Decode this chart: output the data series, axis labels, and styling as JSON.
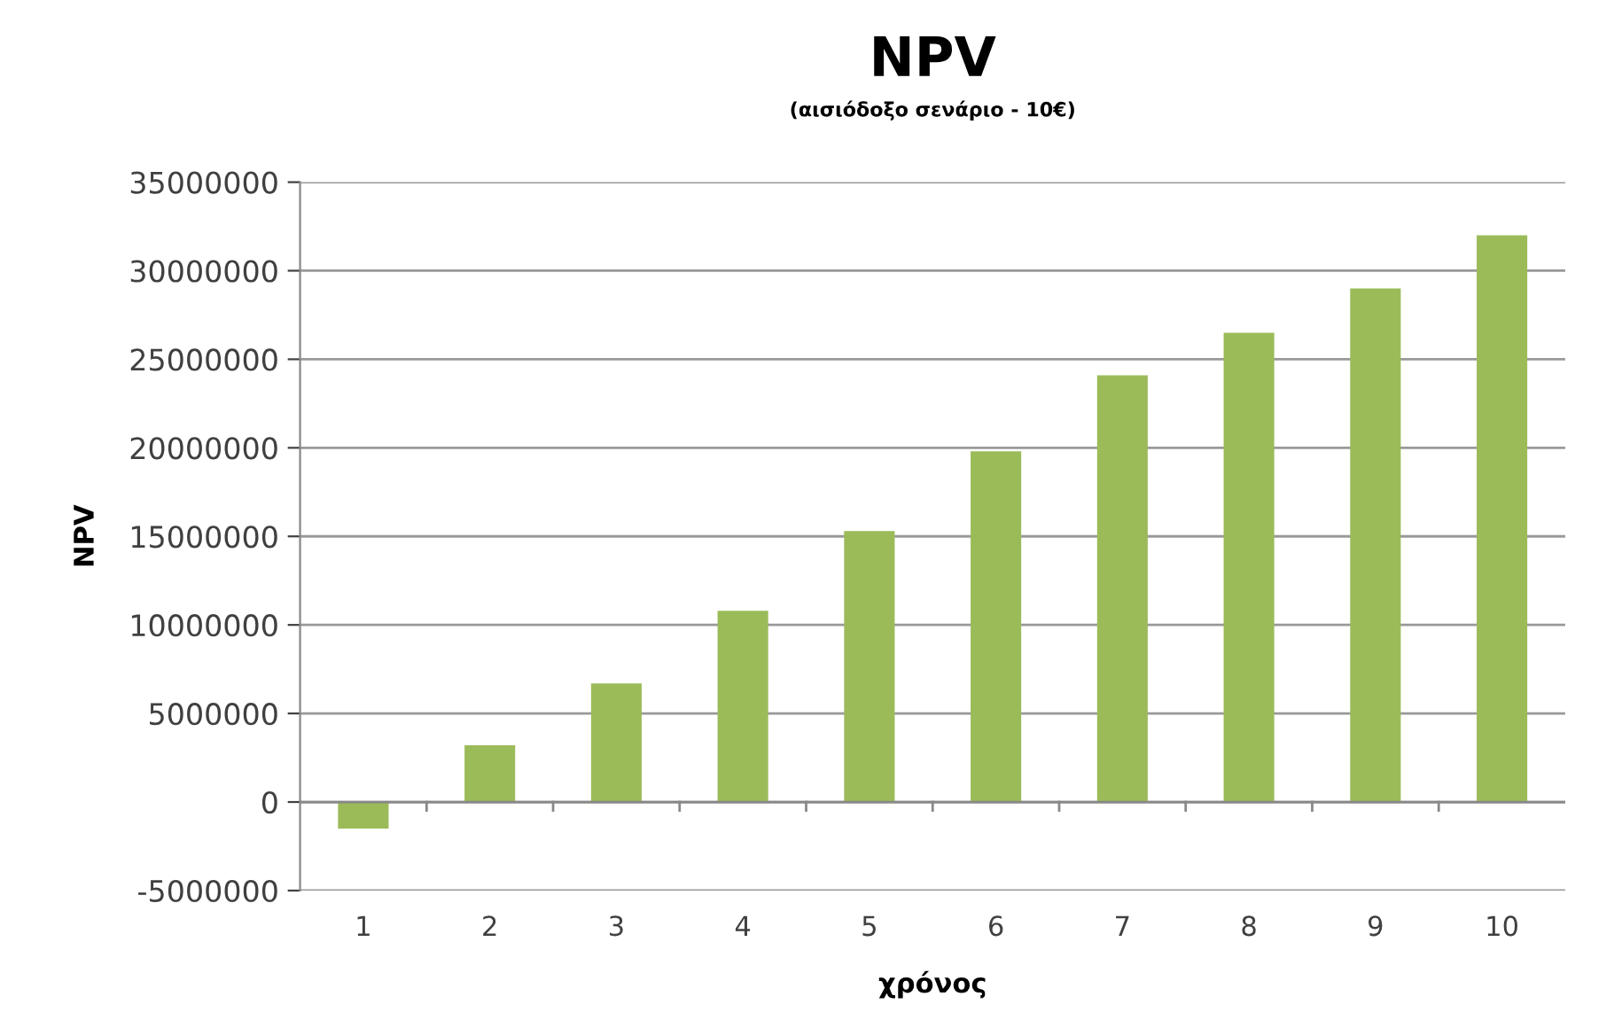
{
  "chart_data": {
    "type": "bar",
    "title": "NPV",
    "subtitle": "(αισιόδοξο σενάριο - 10€)",
    "xlabel": "χρόνος",
    "ylabel": "NPV",
    "categories": [
      "1",
      "2",
      "3",
      "4",
      "5",
      "6",
      "7",
      "8",
      "9",
      "10"
    ],
    "values": [
      -1500000,
      3200000,
      6700000,
      10800000,
      15300000,
      19800000,
      24100000,
      26500000,
      29000000,
      32000000
    ],
    "color": "#9bbb59",
    "ylim": [
      -5000000,
      35000000
    ],
    "yticks": [
      -5000000,
      0,
      5000000,
      10000000,
      15000000,
      20000000,
      25000000,
      30000000,
      35000000
    ],
    "grid": "y",
    "legend": false
  }
}
